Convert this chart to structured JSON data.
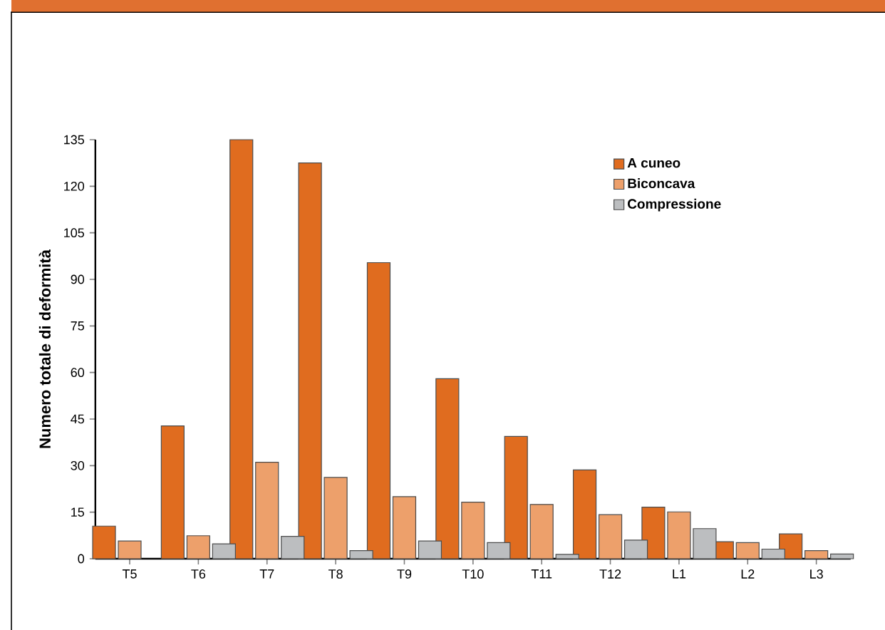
{
  "chart_data": {
    "type": "bar",
    "ylabel": "Numero totale di deformità",
    "categories": [
      "T5",
      "T6",
      "T7",
      "T8",
      "T9",
      "T10",
      "T11",
      "T12",
      "L1",
      "L2",
      "L3"
    ],
    "series": [
      {
        "name": "A cuneo",
        "color": "#e06c1f",
        "values": [
          10.5,
          42.8,
          135,
          127.5,
          95.4,
          58,
          39.4,
          28.6,
          16.6,
          5.5,
          8
        ]
      },
      {
        "name": "Biconcava",
        "color": "#eda06b",
        "values": [
          5.7,
          7.4,
          31.1,
          26.2,
          20,
          18.2,
          17.5,
          14.2,
          15.1,
          5.2,
          2.6
        ]
      },
      {
        "name": "Compressione",
        "color": "#bcbec0",
        "values": [
          null,
          4.8,
          7.2,
          2.6,
          5.7,
          5.2,
          1.4,
          6,
          9.7,
          3.1,
          1.5
        ]
      }
    ],
    "ylim": [
      0,
      135
    ],
    "yticks": [
      0,
      15,
      30,
      45,
      60,
      75,
      90,
      105,
      120,
      135
    ],
    "legend": "top right"
  }
}
